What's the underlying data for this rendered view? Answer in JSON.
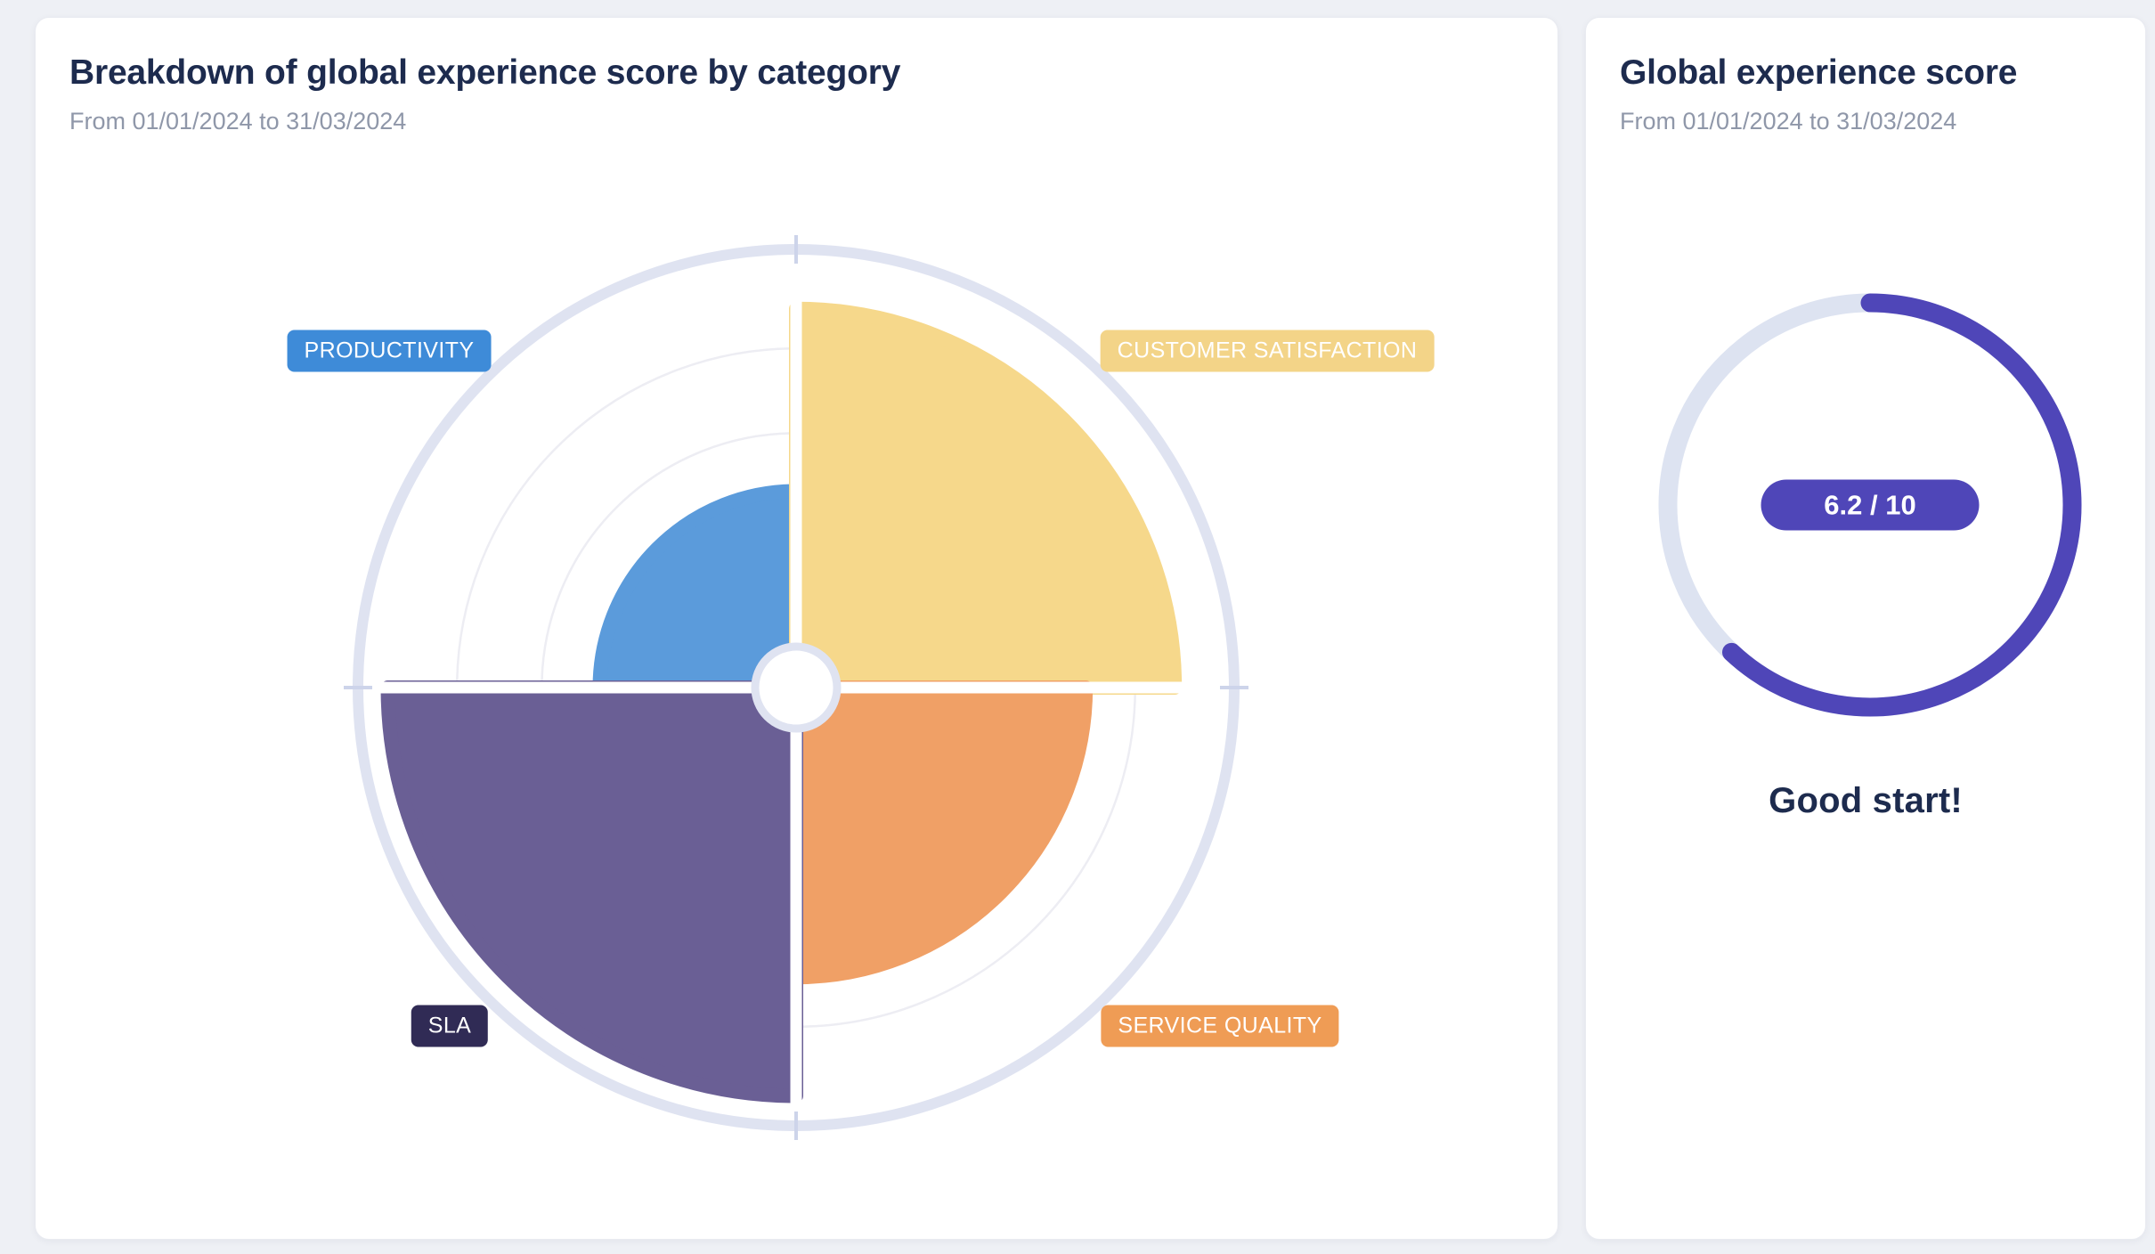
{
  "page_background": "#eef0f5",
  "left_card": {
    "title": "Breakdown of global experience score by category",
    "subtitle": "From 01/01/2024 to 31/03/2024"
  },
  "right_card": {
    "title": "Global experience score",
    "subtitle": "From 01/01/2024 to 31/03/2024",
    "score_label": "6.2 / 10",
    "message": "Good start!"
  },
  "colors": {
    "accent_indigo": "#4f46b8",
    "gauge_track": "#dde3f1",
    "outer_ring": "#dfe3f1",
    "grid_line": "#ededf3",
    "title_text": "#1d2b4e",
    "subtitle_text": "#8f97a9",
    "card_background": "#ffffff"
  },
  "chart_data": [
    {
      "type": "polar_area",
      "title": "Breakdown of global experience score by category",
      "period": "From 01/01/2024 to 31/03/2024",
      "max": 10,
      "note": "segment radii estimated from concentric gridlines",
      "segments": [
        {
          "label": "PRODUCTIVITY",
          "value": 4.8,
          "color": "#5b9bdb",
          "label_color": "#3e8bd8",
          "quadrant": "top-left"
        },
        {
          "label": "CUSTOMER SATISFACTION",
          "value": 9.1,
          "color": "#f6d88b",
          "label_color": "#f3d488",
          "quadrant": "top-right"
        },
        {
          "label": "SERVICE QUALITY",
          "value": 7.0,
          "color": "#f0a066",
          "label_color": "#ef9c55",
          "quadrant": "bottom-right"
        },
        {
          "label": "SLA",
          "value": 9.8,
          "color": "#6a5f95",
          "label_color": "#302b55",
          "quadrant": "bottom-left"
        }
      ]
    },
    {
      "type": "donut_gauge",
      "title": "Global experience score",
      "period": "From 01/01/2024 to 31/03/2024",
      "value": 6.2,
      "max": 10,
      "display": "6.2 / 10",
      "message": "Good start!",
      "color": "#4f46b8",
      "track_color": "#dde3f1"
    }
  ]
}
